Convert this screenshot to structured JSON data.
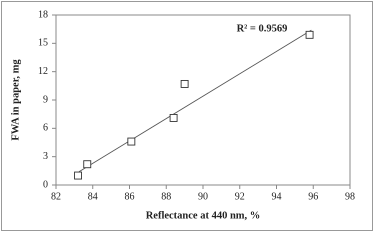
{
  "chart_data": {
    "type": "scatter",
    "xlabel": "Reflectance at 440 nm, %",
    "ylabel": "FWA in paper, mg",
    "annotation": "R² = 0.9569",
    "x": [
      83.2,
      83.7,
      86.1,
      88.4,
      89.0,
      95.8
    ],
    "values": [
      1.0,
      2.2,
      4.6,
      7.1,
      10.7,
      15.9
    ],
    "color": "#333333",
    "trendline": {
      "x": [
        83.25,
        95.9
      ],
      "y": [
        1.4,
        16.4
      ],
      "color": "#555555"
    },
    "xlim": [
      82,
      98
    ],
    "xticks": [
      82,
      84,
      86,
      88,
      90,
      92,
      94,
      96,
      98
    ],
    "ylim": [
      0,
      18
    ],
    "yticks": [
      0,
      3,
      6,
      9,
      12,
      15,
      18
    ],
    "grid": false
  }
}
